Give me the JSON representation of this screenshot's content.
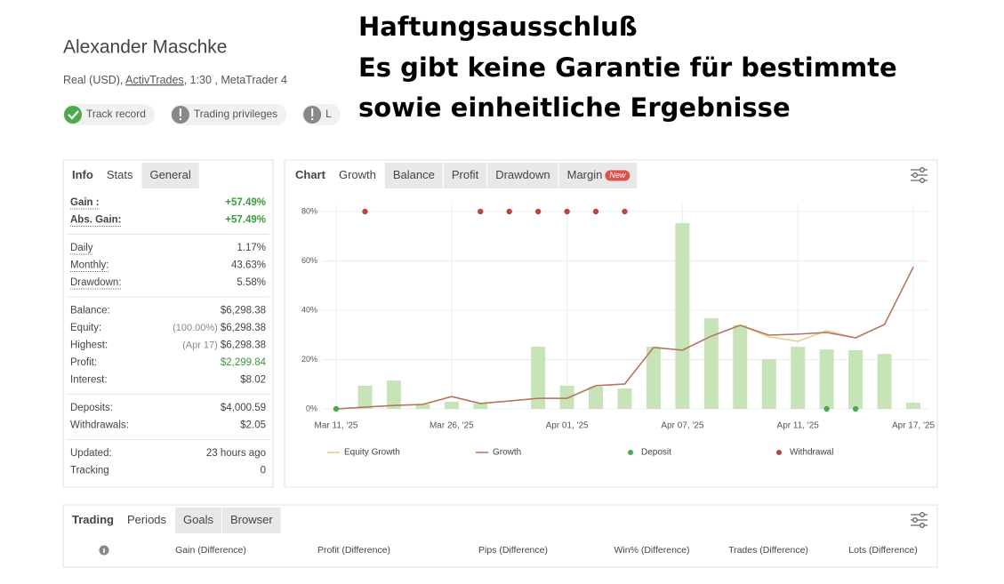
{
  "header": {
    "name": "Alexander Maschke",
    "account": [
      "Real (USD), ",
      "ActivTrades",
      ", 1:30 , MetaTrader 4"
    ],
    "badges": [
      {
        "label": "Track record",
        "status": "ok"
      },
      {
        "label": "Trading privileges",
        "status": "info"
      },
      {
        "label": "L",
        "status": "info"
      }
    ]
  },
  "disclaimer": [
    "Haftungsausschluß",
    "Es gibt keine Garantie für bestimmte",
    "sowie einheitliche Ergebnisse"
  ],
  "info_panel": {
    "label": "Info",
    "tabs": [
      "Stats",
      "General"
    ],
    "active": 0,
    "groups": [
      [
        {
          "label": "Gain :",
          "value": "+57.49%",
          "color": "#3c9a3c"
        },
        {
          "label": "Abs. Gain:",
          "value": "+57.49%",
          "color": "#3c9a3c"
        }
      ],
      [
        {
          "label": "Daily",
          "value": "1.17%"
        },
        {
          "label": "Monthly:",
          "value": "43.63%"
        },
        {
          "label": "Drawdown:",
          "value": "5.58%"
        }
      ],
      [
        {
          "label": "Balance:",
          "value": "$6,298.38"
        },
        {
          "label": "Equity:",
          "note": "(100.00%)",
          "value": "$6,298.38"
        },
        {
          "label": "Highest:",
          "note": "(Apr 17)",
          "value": "$6,298.38"
        },
        {
          "label": "Profit:",
          "value": "$2,299.84",
          "color": "#3c9a3c"
        },
        {
          "label": "Interest:",
          "value": "$8.02"
        }
      ],
      [
        {
          "label": "Deposits:",
          "value": "$4,000.59"
        },
        {
          "label": "Withdrawals:",
          "value": "$2.05"
        }
      ],
      [
        {
          "label": "Updated:",
          "value": "23 hours ago"
        },
        {
          "label": "Tracking",
          "value": "0"
        }
      ]
    ]
  },
  "chart_panel": {
    "label": "Chart",
    "tabs": [
      "Growth",
      "Balance",
      "Profit",
      "Drawdown",
      "Margin"
    ],
    "active": 0,
    "badge": "New"
  },
  "chart_data": {
    "type": "combo",
    "categories": [
      "Mar 11, '25",
      null,
      null,
      null,
      "Mar 26, '25",
      null,
      null,
      null,
      "Apr 01, '25",
      null,
      null,
      null,
      "Apr 07, '25",
      null,
      null,
      null,
      "Apr 11, '25",
      null,
      null,
      null,
      "Apr 17, '25"
    ],
    "ylim": [
      0,
      80
    ],
    "yticks": [
      {
        "value": 0,
        "label": "0%"
      },
      {
        "value": 20,
        "label": "20%"
      },
      {
        "value": 40,
        "label": "40%"
      },
      {
        "value": 60,
        "label": "60%"
      },
      {
        "value": 80,
        "label": "80%"
      }
    ],
    "grid": true,
    "bars": {
      "color": "#c6e4b8",
      "values": [
        0,
        9.4,
        11.5,
        1.8,
        2.9,
        2.2,
        0,
        25.2,
        9.4,
        9.0,
        8.3,
        25.2,
        75.3,
        36.8,
        33.9,
        20.2,
        25.2,
        24.1,
        23.8,
        22.3,
        2.5
      ]
    },
    "series": [
      {
        "name": "Equity Growth",
        "type": "line",
        "color": "#ecc985",
        "values": [
          0,
          0.7,
          1.4,
          1.8,
          5.0,
          2.2,
          3.2,
          4.3,
          4.3,
          9.4,
          10.1,
          24.9,
          23.8,
          29.5,
          33.9,
          29.2,
          27.4,
          31.7,
          28.8,
          34.2,
          57.49
        ]
      },
      {
        "name": "Growth",
        "type": "line",
        "color": "#b4725f",
        "values": [
          0,
          0.7,
          1.4,
          1.8,
          5.0,
          2.2,
          3.2,
          4.3,
          4.3,
          9.4,
          10.1,
          24.9,
          23.8,
          29.5,
          33.9,
          29.9,
          30.3,
          31.0,
          28.8,
          34.2,
          57.49
        ]
      },
      {
        "name": "Deposit",
        "type": "scatter",
        "color": "#4caa4c",
        "values": [
          0,
          null,
          null,
          null,
          null,
          null,
          null,
          null,
          null,
          null,
          null,
          null,
          null,
          null,
          null,
          null,
          null,
          0,
          0,
          null,
          null
        ]
      },
      {
        "name": "Withdrawal",
        "type": "scatter",
        "color": "#b9473f",
        "values": [
          null,
          80,
          null,
          null,
          null,
          80,
          80,
          80,
          80,
          80,
          80,
          null,
          null,
          null,
          null,
          null,
          null,
          null,
          null,
          null,
          null
        ]
      }
    ]
  },
  "periods_panel": {
    "label": "Trading",
    "tabs": [
      "Periods",
      "Goals",
      "Browser"
    ],
    "active": 0,
    "columns": [
      "Gain (Difference)",
      "Profit (Difference)",
      "Pips (Difference)",
      "Win% (Difference)",
      "Trades (Difference)",
      "Lots (Difference)"
    ]
  }
}
